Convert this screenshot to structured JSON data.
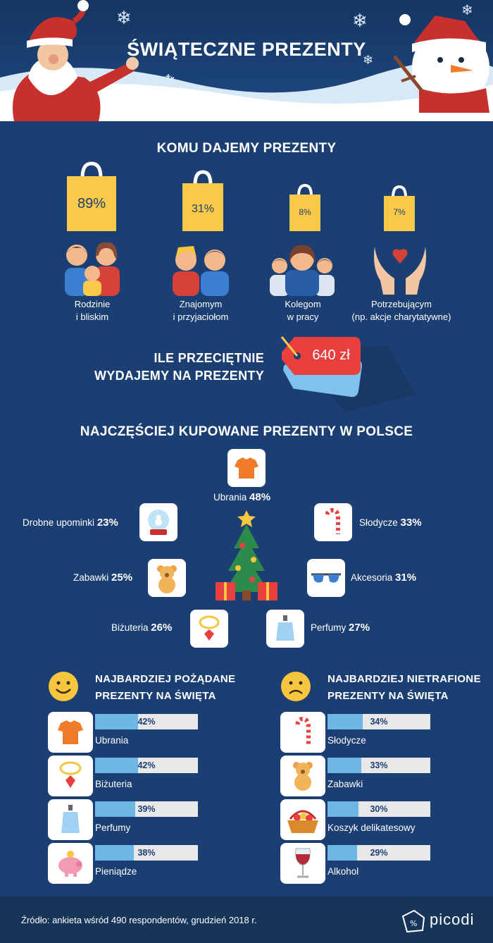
{
  "header": {
    "title": "ŚWIĄTECZNE PREZENTY"
  },
  "recipients": {
    "heading": "KOMU DAJEMY PREZENTY",
    "items": [
      {
        "pct": "89%",
        "label_line1": "Rodzinie",
        "label_line2": "i bliskim"
      },
      {
        "pct": "31%",
        "label_line1": "Znajomym",
        "label_line2": "i przyjaciołom"
      },
      {
        "pct": "8%",
        "label_line1": "Kolegom",
        "label_line2": "w pracy"
      },
      {
        "pct": "7%",
        "label_line1": "Potrzebującym",
        "label_line2": "(np. akcje charytatywne)"
      }
    ]
  },
  "spend": {
    "line1": "ILE PRZECIĘTNIE",
    "line2": "WYDAJEMY NA PREZENTY",
    "amount": "640 zł"
  },
  "popular": {
    "heading": "NAJCZĘŚCIEJ KUPOWANE PREZENTY W POLSCE",
    "items": [
      {
        "name": "Ubrania",
        "pct": "48%"
      },
      {
        "name": "Drobne upominki",
        "pct": "23%"
      },
      {
        "name": "Słodycze",
        "pct": "33%"
      },
      {
        "name": "Zabawki",
        "pct": "25%"
      },
      {
        "name": "Akcesoria",
        "pct": "31%"
      },
      {
        "name": "Biżuteria",
        "pct": "26%"
      },
      {
        "name": "Perfumy",
        "pct": "27%"
      }
    ]
  },
  "wanted": {
    "title_line1": "NAJBARDZIEJ POŻĄDANE",
    "title_line2": "PREZENTY NA ŚWIĘTA",
    "rows": [
      {
        "name": "Ubrania",
        "pct": "42%",
        "value": 42,
        "icon": "tshirt-icon"
      },
      {
        "name": "Biżuteria",
        "pct": "42%",
        "value": 42,
        "icon": "necklace-icon"
      },
      {
        "name": "Perfumy",
        "pct": "39%",
        "value": 39,
        "icon": "perfume-icon"
      },
      {
        "name": "Pieniądze",
        "pct": "38%",
        "value": 38,
        "icon": "piggy-bank-icon"
      }
    ]
  },
  "missed": {
    "title_line1": "NAJBARDZIEJ NIETRAFIONE",
    "title_line2": "PREZENTY NA ŚWIĘTA",
    "rows": [
      {
        "name": "Słodycze",
        "pct": "34%",
        "value": 34,
        "icon": "candy-cane-icon"
      },
      {
        "name": "Zabawki",
        "pct": "33%",
        "value": 33,
        "icon": "teddy-bear-icon"
      },
      {
        "name": "Koszyk delikatesowy",
        "pct": "30%",
        "value": 30,
        "icon": "basket-icon"
      },
      {
        "name": "Alkohol",
        "pct": "29%",
        "value": 29,
        "icon": "wine-glass-icon"
      }
    ]
  },
  "footer": {
    "source": "Źródło: ankieta wśród 490 respondentów, grudzień 2018 r.",
    "brand": "picodi"
  },
  "colors": {
    "background": "#1b3f73",
    "bag": "#fbc94a",
    "bar": "#6eb6e4",
    "price_tag": "#e8403f"
  }
}
